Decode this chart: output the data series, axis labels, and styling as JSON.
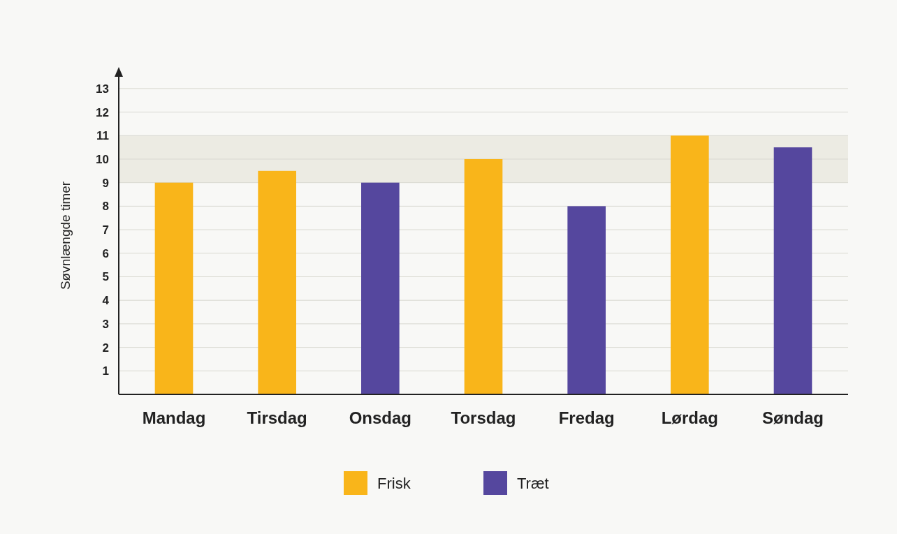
{
  "chart_data": {
    "type": "bar",
    "ylabel": "Søvnlængde timer",
    "categories": [
      "Mandag",
      "Tirsdag",
      "Onsdag",
      "Torsdag",
      "Fredag",
      "Lørdag",
      "Søndag"
    ],
    "series": [
      {
        "name": "Frisk",
        "color": "#f9b51a",
        "values": [
          9,
          9.5,
          null,
          10,
          null,
          11,
          null
        ]
      },
      {
        "name": "Træt",
        "color": "#55479e",
        "values": [
          null,
          null,
          9,
          null,
          8,
          null,
          10.5
        ]
      }
    ],
    "stacked": true,
    "ylim": [
      0,
      13.5
    ],
    "yticks": [
      1,
      2,
      3,
      4,
      5,
      6,
      7,
      8,
      9,
      10,
      11,
      12,
      13
    ],
    "grid": "y",
    "bands": [
      {
        "axis": "y",
        "from": 9,
        "to": 11,
        "color": "#ecebe3"
      }
    ],
    "legend": "bottom"
  }
}
